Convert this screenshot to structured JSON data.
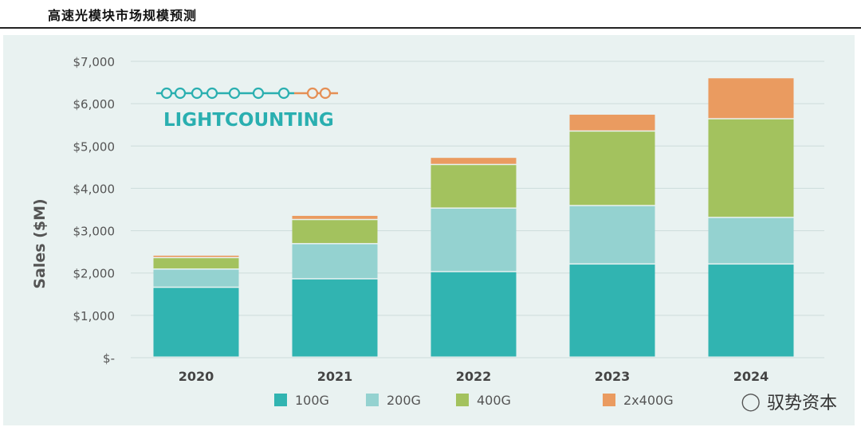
{
  "header": {
    "title": "高速光模块市场规模预测"
  },
  "brand": {
    "name": "LIGHTCOUNTING"
  },
  "watermark": {
    "text": "驭势资本"
  },
  "colors": {
    "s100G": "#31b4b1",
    "s200G": "#94d2d0",
    "s400G": "#a3c25e",
    "s2x400G": "#ea9b60",
    "grid": "#cddcdb",
    "tick": "#555555",
    "logo_teal": "#2aafb0",
    "logo_orange": "#e58f55"
  },
  "chart_data": {
    "type": "bar",
    "stacked": true,
    "title": "",
    "xlabel": "",
    "ylabel": "Sales ($M)",
    "ylim": [
      0,
      7000
    ],
    "yticks": [
      0,
      1000,
      2000,
      3000,
      4000,
      5000,
      6000,
      7000
    ],
    "ytick_labels": [
      "$-",
      "$1,000",
      "$2,000",
      "$3,000",
      "$4,000",
      "$5,000",
      "$6,000",
      "$7,000"
    ],
    "categories": [
      "2020",
      "2021",
      "2022",
      "2023",
      "2024"
    ],
    "series": [
      {
        "name": "100G",
        "values": [
          1650,
          1850,
          2020,
          2200,
          2200
        ]
      },
      {
        "name": "200G",
        "values": [
          430,
          830,
          1500,
          1380,
          1100
        ]
      },
      {
        "name": "400G",
        "values": [
          270,
          570,
          1030,
          1760,
          2330
        ]
      },
      {
        "name": "2x400G",
        "values": [
          60,
          100,
          170,
          400,
          970
        ]
      }
    ],
    "legend_position": "bottom"
  }
}
